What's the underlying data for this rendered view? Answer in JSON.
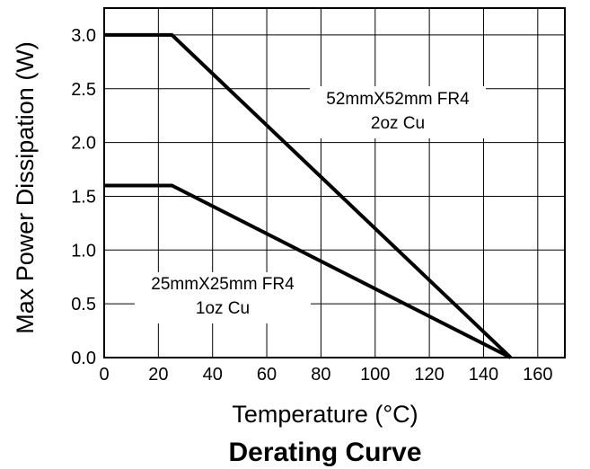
{
  "chart_data": {
    "type": "line",
    "title": "Derating Curve",
    "xlabel": "Temperature (°C)",
    "ylabel": "Max Power Dissipation (W)",
    "xlim": [
      0,
      170
    ],
    "ylim": [
      0,
      3.25
    ],
    "x_ticks": [
      "0",
      "20",
      "40",
      "60",
      "80",
      "100",
      "120",
      "140",
      "160"
    ],
    "y_ticks": [
      "0.0",
      "0.5",
      "1.0",
      "1.5",
      "2.0",
      "2.5",
      "3.0"
    ],
    "grid": true,
    "line_color": "#000000",
    "series": [
      {
        "name": "52mmX52mm FR4 2oz Cu",
        "x": [
          0,
          25,
          150
        ],
        "y": [
          3.0,
          3.0,
          0.0
        ]
      },
      {
        "name": "25mmX25mm FR4 1oz Cu",
        "x": [
          0,
          25,
          150
        ],
        "y": [
          1.6,
          1.6,
          0.0
        ]
      }
    ],
    "annotations": [
      {
        "lines": [
          "52mmX52mm FR4",
          "2oz Cu"
        ]
      },
      {
        "lines": [
          "25mmX25mm FR4",
          "1oz Cu"
        ]
      }
    ]
  }
}
